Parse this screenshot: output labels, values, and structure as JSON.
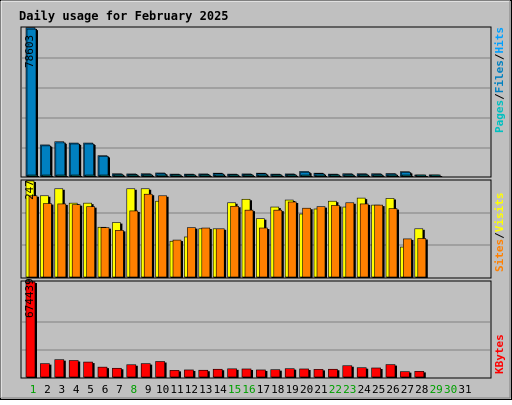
{
  "title": "Daily usage for February 2025",
  "colors": {
    "background": "#C0C0C0",
    "title": "#0000C0",
    "grid": "#808080",
    "hits": "#00A0FF",
    "files": "#0080C0",
    "pages": "#00C0C0",
    "visits": "#FFFF00",
    "sites": "#FF8000",
    "kbytes": "#FF0000",
    "weekday_label": "#000000",
    "weekend_label": "#00A000"
  },
  "legend": {
    "top": {
      "pages": "Pages",
      "files": "Files",
      "hits": "Hits",
      "sep": "/"
    },
    "middle": {
      "sites": "Sites",
      "visits": "Visits",
      "sep": "/"
    },
    "bottom": {
      "kbytes": "KBytes"
    }
  },
  "chart_data": {
    "type": "bar",
    "title": "Daily usage for February 2025",
    "categories": [
      "1",
      "2",
      "3",
      "4",
      "5",
      "6",
      "7",
      "8",
      "9",
      "10",
      "11",
      "12",
      "13",
      "14",
      "15",
      "16",
      "17",
      "18",
      "19",
      "20",
      "21",
      "22",
      "23",
      "24",
      "25",
      "26",
      "27",
      "28",
      "29",
      "30",
      "31"
    ],
    "weekend_days": [
      "1",
      "8",
      "15",
      "16",
      "22",
      "23",
      "29",
      "30"
    ],
    "panels": [
      {
        "name": "hits-files-pages",
        "ymax_label": "78603",
        "ylim": [
          0,
          78603
        ],
        "series": [
          {
            "name": "Hits",
            "color": "#00A0FF",
            "values": [
              78603,
              16500,
              18200,
              17500,
              17500,
              10800,
              1200,
              1100,
              1200,
              1600,
              1000,
              1000,
              1100,
              1500,
              1000,
              1100,
              1500,
              1000,
              1100,
              2400,
              1500,
              1000,
              1200,
              1200,
              1200,
              1300,
              2300,
              500,
              600,
              null,
              null
            ]
          },
          {
            "name": "Files",
            "color": "#0080C0",
            "values": [
              78000,
              16000,
              17600,
              17000,
              17000,
              10400,
              1000,
              900,
              1000,
              1300,
              800,
              800,
              900,
              1200,
              800,
              900,
              1200,
              800,
              900,
              2000,
              1200,
              800,
              1000,
              1000,
              1000,
              1100,
              1900,
              400,
              500,
              null,
              null
            ]
          },
          {
            "name": "Pages",
            "color": "#00C0C0",
            "values": [
              400,
              300,
              300,
              300,
              300,
              200,
              100,
              100,
              100,
              100,
              100,
              100,
              100,
              100,
              100,
              100,
              100,
              100,
              100,
              100,
              100,
              100,
              100,
              100,
              100,
              100,
              100,
              50,
              50,
              null,
              null
            ]
          }
        ]
      },
      {
        "name": "visits-sites",
        "ymax_label": "247",
        "ylim": [
          0,
          247
        ],
        "series": [
          {
            "name": "Visits",
            "color": "#FFFF00",
            "values": [
              247,
              209,
              227,
              190,
              190,
              128,
              140,
              227,
              227,
              195,
              92,
              103,
              124,
              124,
              191,
              200,
              150,
              180,
              198,
              162,
              175,
              195,
              180,
              203,
              185,
              202,
              77,
              124,
              null,
              null,
              null
            ]
          },
          {
            "name": "Sites",
            "color": "#FF8000",
            "values": [
              209,
              189,
              188,
              186,
              181,
              127,
              120,
              170,
              213,
              209,
              95,
              127,
              126,
              124,
              182,
              172,
              126,
              172,
              193,
              177,
              181,
              184,
              191,
              188,
              185,
              176,
              98,
              99,
              null,
              null,
              null
            ]
          }
        ]
      },
      {
        "name": "kbytes",
        "ymax_label": "674439",
        "ylim": [
          0,
          674439
        ],
        "series": [
          {
            "name": "KBytes",
            "color": "#FF0000",
            "values": [
              674439,
              95000,
              123000,
              117000,
              106000,
              70000,
              62000,
              87000,
              95000,
              110000,
              47000,
              50000,
              48000,
              55000,
              58000,
              57000,
              50000,
              52000,
              59000,
              57000,
              54000,
              55000,
              80000,
              66000,
              64000,
              88000,
              38000,
              40000,
              null,
              null,
              null
            ]
          }
        ]
      }
    ]
  }
}
